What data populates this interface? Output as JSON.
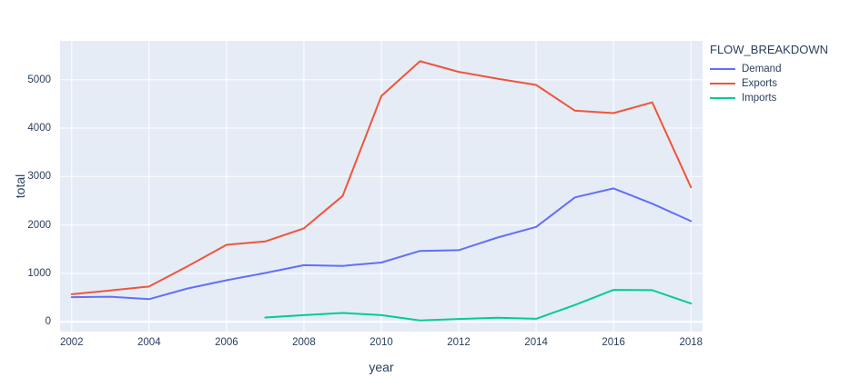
{
  "plot": {
    "background": "#e5ecf6",
    "grid_color": "#ffffff",
    "text_color": "#2a3f5f"
  },
  "axes": {
    "x_label": "year",
    "y_label": "total",
    "x_ticks": [
      2002,
      2004,
      2006,
      2008,
      2010,
      2012,
      2014,
      2016,
      2018
    ],
    "y_ticks": [
      0,
      1000,
      2000,
      3000,
      4000,
      5000
    ]
  },
  "legend": {
    "title": "FLOW_BREAKDOWN",
    "items": [
      {
        "label": "Demand",
        "color": "#636efa"
      },
      {
        "label": "Exports",
        "color": "#ef553b"
      },
      {
        "label": "Imports",
        "color": "#00cc96"
      }
    ]
  },
  "chart_data": {
    "type": "line",
    "title": "",
    "xlabel": "year",
    "ylabel": "total",
    "legend_title": "FLOW_BREAKDOWN",
    "legend_position": "top-right-outside",
    "grid": true,
    "xlim": [
      2001.7,
      2018.3
    ],
    "ylim": [
      -200,
      5800
    ],
    "series": [
      {
        "name": "Demand",
        "color": "#636efa",
        "x": [
          2002,
          2003,
          2004,
          2005,
          2006,
          2007,
          2008,
          2009,
          2010,
          2011,
          2012,
          2013,
          2014,
          2015,
          2016,
          2017,
          2018
        ],
        "y": [
          510,
          520,
          470,
          690,
          860,
          1010,
          1170,
          1155,
          1225,
          1465,
          1480,
          1740,
          1960,
          2570,
          2755,
          2440,
          2080
        ]
      },
      {
        "name": "Exports",
        "color": "#ef553b",
        "x": [
          2002,
          2003,
          2004,
          2005,
          2006,
          2007,
          2008,
          2009,
          2010,
          2011,
          2012,
          2013,
          2014,
          2015,
          2016,
          2017,
          2018
        ],
        "y": [
          570,
          650,
          730,
          1150,
          1590,
          1660,
          1930,
          2600,
          4660,
          5380,
          5160,
          5020,
          4890,
          4360,
          4310,
          4530,
          2780
        ]
      },
      {
        "name": "Imports",
        "color": "#00cc96",
        "x": [
          2007,
          2008,
          2009,
          2010,
          2011,
          2012,
          2013,
          2014,
          2015,
          2016,
          2017,
          2018
        ],
        "y": [
          90,
          140,
          185,
          140,
          30,
          60,
          85,
          65,
          350,
          660,
          655,
          380
        ]
      }
    ]
  }
}
